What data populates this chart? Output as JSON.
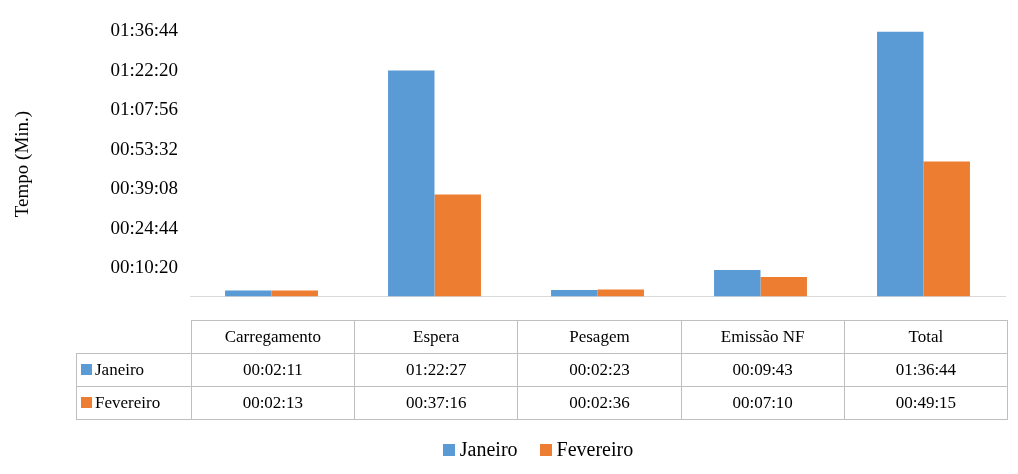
{
  "chart_data": {
    "type": "bar",
    "ylabel": "Tempo (Min.)",
    "categories": [
      "Carregamento",
      "Espera",
      "Pesagem",
      "Emissão NF",
      "Total"
    ],
    "series": [
      {
        "name": "Janeiro",
        "color": "#5b9bd5",
        "values": [
          131,
          4947,
          143,
          583,
          5804
        ],
        "value_labels": [
          "00:02:11",
          "01:22:27",
          "00:02:23",
          "00:09:43",
          "01:36:44"
        ]
      },
      {
        "name": "Fevereiro",
        "color": "#ed7d31",
        "values": [
          133,
          2236,
          156,
          430,
          2955
        ],
        "value_labels": [
          "00:02:13",
          "00:37:16",
          "00:02:36",
          "00:07:10",
          "00:49:15"
        ]
      }
    ],
    "ylim": [
      0,
      5804
    ],
    "yticks": [
      {
        "value": 620,
        "label": "00:10:20"
      },
      {
        "value": 1484,
        "label": "00:24:44"
      },
      {
        "value": 2348,
        "label": "00:39:08"
      },
      {
        "value": 3212,
        "label": "00:53:32"
      },
      {
        "value": 4076,
        "label": "01:07:56"
      },
      {
        "value": 4940,
        "label": "01:22:20"
      },
      {
        "value": 5804,
        "label": "01:36:44"
      }
    ],
    "legend": "bottom"
  }
}
